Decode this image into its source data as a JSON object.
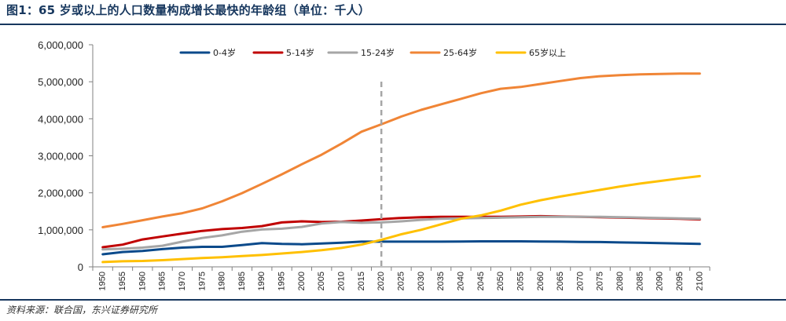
{
  "title": "图1：65 岁或以上的人口数量构成增长最快的年龄组（单位：千人）",
  "source": "资料来源：联合国，东兴证券研究所",
  "chart_data": {
    "type": "line",
    "title": "图1：65 岁或以上的人口数量构成增长最快的年龄组（单位：千人）",
    "xlabel": "",
    "ylabel": "",
    "ylim": [
      0,
      6000000
    ],
    "yticks": [
      0,
      1000000,
      2000000,
      3000000,
      4000000,
      5000000,
      6000000
    ],
    "ytick_labels": [
      "0",
      "1,000,000",
      "2,000,000",
      "3,000,000",
      "4,000,000",
      "5,000,000",
      "6,000,000"
    ],
    "x": [
      "1950",
      "1955",
      "1960",
      "1965",
      "1970",
      "1975",
      "1980",
      "1985",
      "1990",
      "1995",
      "2000",
      "2005",
      "2010",
      "2015",
      "2020",
      "2025",
      "2030",
      "2035",
      "2040",
      "2045",
      "2050",
      "2055",
      "2060",
      "2065",
      "2070",
      "2075",
      "2080",
      "2085",
      "2090",
      "2095",
      "2100"
    ],
    "vline_x": "2020",
    "legend_position": "top",
    "series": [
      {
        "name": "0-4岁",
        "color": "#0b4a8b",
        "values": [
          340000,
          400000,
          430000,
          480000,
          520000,
          540000,
          540000,
          590000,
          640000,
          620000,
          610000,
          630000,
          650000,
          680000,
          680000,
          680000,
          680000,
          680000,
          685000,
          690000,
          690000,
          690000,
          685000,
          680000,
          675000,
          670000,
          660000,
          650000,
          640000,
          630000,
          620000
        ]
      },
      {
        "name": "5-14岁",
        "color": "#c00000",
        "values": [
          530000,
          600000,
          740000,
          820000,
          900000,
          970000,
          1020000,
          1050000,
          1100000,
          1200000,
          1230000,
          1210000,
          1220000,
          1250000,
          1290000,
          1320000,
          1340000,
          1350000,
          1350000,
          1350000,
          1350000,
          1360000,
          1370000,
          1360000,
          1350000,
          1340000,
          1330000,
          1320000,
          1310000,
          1300000,
          1280000
        ]
      },
      {
        "name": "15-24岁",
        "color": "#a6a6a6",
        "values": [
          470000,
          490000,
          520000,
          570000,
          680000,
          780000,
          850000,
          950000,
          1010000,
          1030000,
          1080000,
          1170000,
          1210000,
          1190000,
          1200000,
          1230000,
          1270000,
          1300000,
          1310000,
          1320000,
          1330000,
          1340000,
          1350000,
          1350000,
          1350000,
          1350000,
          1340000,
          1330000,
          1320000,
          1310000,
          1300000
        ]
      },
      {
        "name": "25-64岁",
        "color": "#f08536",
        "values": [
          1070000,
          1160000,
          1260000,
          1360000,
          1450000,
          1580000,
          1770000,
          1990000,
          2240000,
          2500000,
          2770000,
          3030000,
          3330000,
          3650000,
          3850000,
          4060000,
          4240000,
          4390000,
          4540000,
          4690000,
          4810000,
          4860000,
          4940000,
          5020000,
          5100000,
          5150000,
          5180000,
          5200000,
          5210000,
          5220000,
          5220000
        ]
      },
      {
        "name": "65岁以上",
        "color": "#ffc000",
        "values": [
          130000,
          150000,
          160000,
          180000,
          210000,
          240000,
          260000,
          290000,
          320000,
          360000,
          400000,
          450000,
          510000,
          600000,
          730000,
          880000,
          1000000,
          1150000,
          1300000,
          1390000,
          1520000,
          1680000,
          1800000,
          1900000,
          1990000,
          2080000,
          2170000,
          2250000,
          2320000,
          2390000,
          2450000
        ]
      }
    ]
  }
}
